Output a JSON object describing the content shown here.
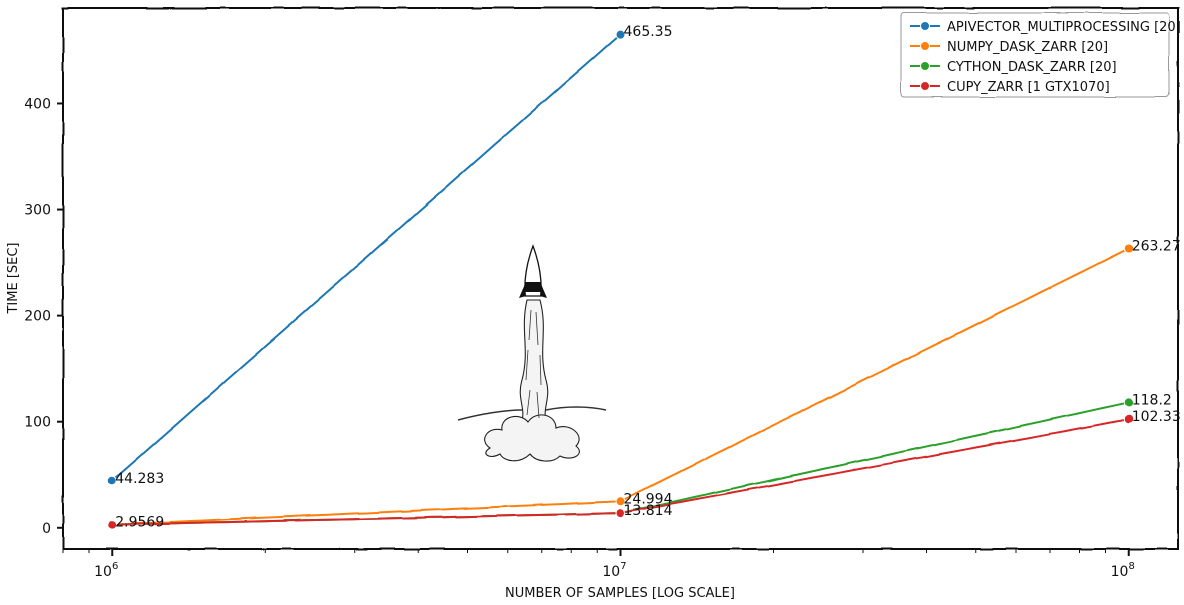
{
  "chart_data": {
    "type": "line",
    "xlabel": "NUMBER OF SAMPLES [LOG SCALE]",
    "ylabel": "TIME [SEC]",
    "x_scale": "log",
    "x": [
      1000000,
      10000000,
      100000000
    ],
    "xlim": [
      800000,
      125000000
    ],
    "ylim": [
      -20,
      490
    ],
    "x_ticks": [
      {
        "value": 1000000,
        "base": "10",
        "exp": "6"
      },
      {
        "value": 10000000,
        "base": "10",
        "exp": "7"
      },
      {
        "value": 100000000,
        "base": "10",
        "exp": "8"
      }
    ],
    "y_ticks": [
      0,
      100,
      200,
      300,
      400
    ],
    "legend_position": "top-right",
    "grid": false,
    "decoration": "rocket-launch-sketch",
    "series": [
      {
        "name": "APIVECTOR_MULTIPROCESSING [20]",
        "color": "#1f77b4",
        "points": [
          [
            1000000,
            44.283
          ],
          [
            10000000,
            465.35
          ]
        ],
        "labels": [
          "44.283",
          "465.35"
        ]
      },
      {
        "name": "NUMPY_DASK_ZARR [20]",
        "color": "#ff7f0e",
        "points": [
          [
            1000000,
            2.9569
          ],
          [
            10000000,
            24.994
          ],
          [
            100000000,
            263.27
          ]
        ],
        "labels": [
          "",
          "24.994",
          "263.27"
        ]
      },
      {
        "name": "CYTHON_DASK_ZARR [20]",
        "color": "#2ca02c",
        "points": [
          [
            1000000,
            2.9569
          ],
          [
            10000000,
            13.814
          ],
          [
            100000000,
            118.2
          ]
        ],
        "labels": [
          "",
          "",
          "118.2"
        ]
      },
      {
        "name": "CUPY_ZARR [1 GTX1070]",
        "color": "#d62728",
        "points": [
          [
            1000000,
            2.9569
          ],
          [
            10000000,
            13.814
          ],
          [
            100000000,
            102.33
          ]
        ],
        "labels": [
          "2.9569",
          "13.814",
          "102.33"
        ]
      }
    ]
  }
}
